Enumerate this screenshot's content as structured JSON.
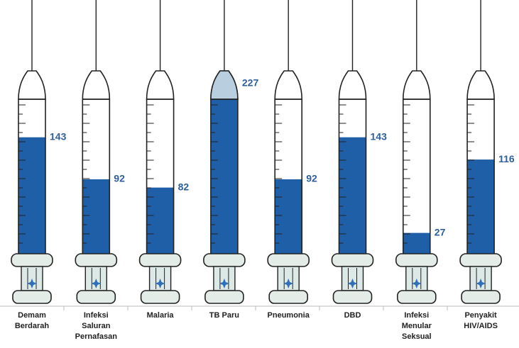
{
  "chart_data": {
    "type": "bar",
    "categories": [
      "Demam Berdarah",
      "Infeksi Saluran Pernafasan",
      "Malaria",
      "TB Paru",
      "Pneumonia",
      "DBD",
      "Infeksi Menular Seksual",
      "Penyakit HIV/AIDS"
    ],
    "values": [
      143,
      92,
      82,
      227,
      92,
      143,
      27,
      116
    ],
    "color": "#1f5fa8"
  }
}
